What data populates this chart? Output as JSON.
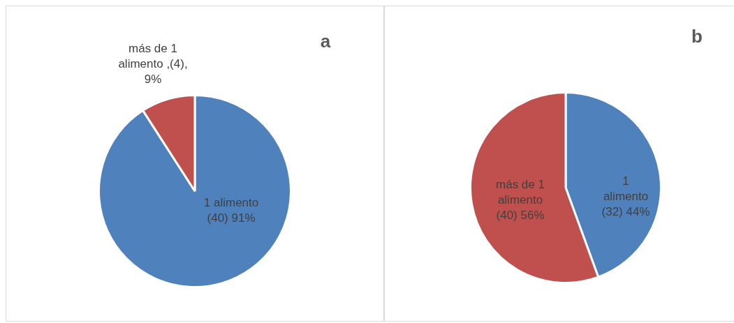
{
  "chart_data": [
    {
      "type": "pie",
      "title": "a",
      "categories": [
        "1 alimento",
        "más de 1 alimento"
      ],
      "values": [
        40,
        4
      ],
      "colors": [
        "#4f81bd",
        "#c0504d"
      ],
      "value_labels": [
        "(40) 91%",
        ",(4), 9%"
      ],
      "legend": false
    },
    {
      "type": "pie",
      "title": "b",
      "categories": [
        "1 alimento",
        "más de 1 alimento"
      ],
      "values": [
        32,
        40
      ],
      "colors": [
        "#4f81bd",
        "#c0504d"
      ],
      "value_labels": [
        "(32) 44%",
        "(40) 56%"
      ],
      "legend": false
    }
  ]
}
